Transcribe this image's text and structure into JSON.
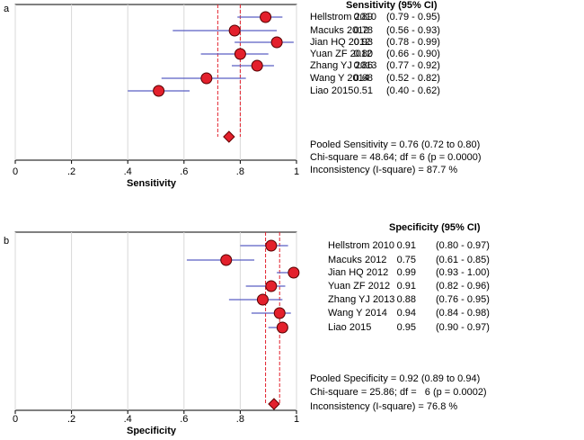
{
  "chart_data": [
    {
      "type": "forest",
      "panel_label": "a",
      "header": "Sensitivity (95% CI)",
      "studies": [
        "Hellstrom 2010",
        "Macuks 2012",
        "Jian HQ 2012",
        "Yuan ZF 2012",
        "Zhang YJ 2013",
        "Wang Y 2014",
        "Liao 2015"
      ],
      "values": [
        0.89,
        0.78,
        0.93,
        0.8,
        0.86,
        0.68,
        0.51
      ],
      "value_labels": [
        "0.89",
        "0.78",
        "0.93",
        "0.80",
        "0.86",
        "0.68",
        "0.51"
      ],
      "lower": [
        0.79,
        0.56,
        0.78,
        0.66,
        0.77,
        0.52,
        0.4
      ],
      "upper": [
        0.95,
        0.93,
        0.99,
        0.9,
        0.92,
        0.82,
        0.62
      ],
      "ci_labels": [
        "(0.79 - 0.95)",
        "(0.56 - 0.93)",
        "(0.78 - 0.99)",
        "(0.66 - 0.90)",
        "(0.77 - 0.92)",
        "(0.52 - 0.82)",
        "(0.40 - 0.62)"
      ],
      "pooled": {
        "value": 0.76,
        "lower": 0.72,
        "upper": 0.8
      },
      "notes": [
        "Pooled Sensitivity = 0.76 (0.72 to 0.80)",
        "Chi-square = 48.64; df = 6 (p = 0.0000)",
        "Inconsistency (I-square) = 87.7 %"
      ],
      "x_label": "Sensitivity",
      "xlim": [
        0,
        1
      ],
      "xticks": [
        0,
        {
          "value": 0.2,
          "label": ".2"
        },
        {
          "value": 0.4,
          "label": ".4"
        },
        {
          "value": 0.6,
          "label": ".6"
        },
        {
          "value": 0.8,
          "label": ".8"
        },
        1
      ],
      "grid": true,
      "color": "#e3202c",
      "ci_color": "#5a5fc4",
      "pooled_color": "#e3202c"
    },
    {
      "type": "forest",
      "panel_label": "b",
      "header": "Specificity (95% CI)",
      "studies": [
        "Hellstrom 2010",
        "Macuks 2012",
        "Jian HQ 2012",
        "Yuan ZF 2012",
        "Zhang YJ 2013",
        "Wang Y 2014",
        "Liao 2015"
      ],
      "values": [
        0.91,
        0.75,
        0.99,
        0.91,
        0.88,
        0.94,
        0.95
      ],
      "value_labels": [
        "0.91",
        "0.75",
        "0.99",
        "0.91",
        "0.88",
        "0.94",
        "0.95"
      ],
      "lower": [
        0.8,
        0.61,
        0.93,
        0.82,
        0.76,
        0.84,
        0.9
      ],
      "upper": [
        0.97,
        0.85,
        1.0,
        0.96,
        0.95,
        0.98,
        0.97
      ],
      "ci_labels": [
        "(0.80 - 0.97)",
        "(0.61 - 0.85)",
        "(0.93 - 1.00)",
        "(0.82 - 0.96)",
        "(0.76 - 0.95)",
        "(0.84 - 0.98)",
        "(0.90 - 0.97)"
      ],
      "pooled": {
        "value": 0.92,
        "lower": 0.89,
        "upper": 0.94
      },
      "notes": [
        "Pooled Specificity = 0.92 (0.89 to 0.94)",
        "Chi-square = 25.86; df =   6 (p = 0.0002)",
        "Inconsistency (I-square) = 76.8 %"
      ],
      "x_label": "Specificity",
      "xlim": [
        0,
        1
      ],
      "xticks": [
        0,
        {
          "value": 0.2,
          "label": ".2"
        },
        {
          "value": 0.4,
          "label": ".4"
        },
        {
          "value": 0.6,
          "label": ".6"
        },
        {
          "value": 0.8,
          "label": ".8"
        },
        1
      ],
      "grid": true,
      "color": "#e3202c",
      "ci_color": "#5a5fc4",
      "pooled_color": "#e3202c"
    }
  ]
}
